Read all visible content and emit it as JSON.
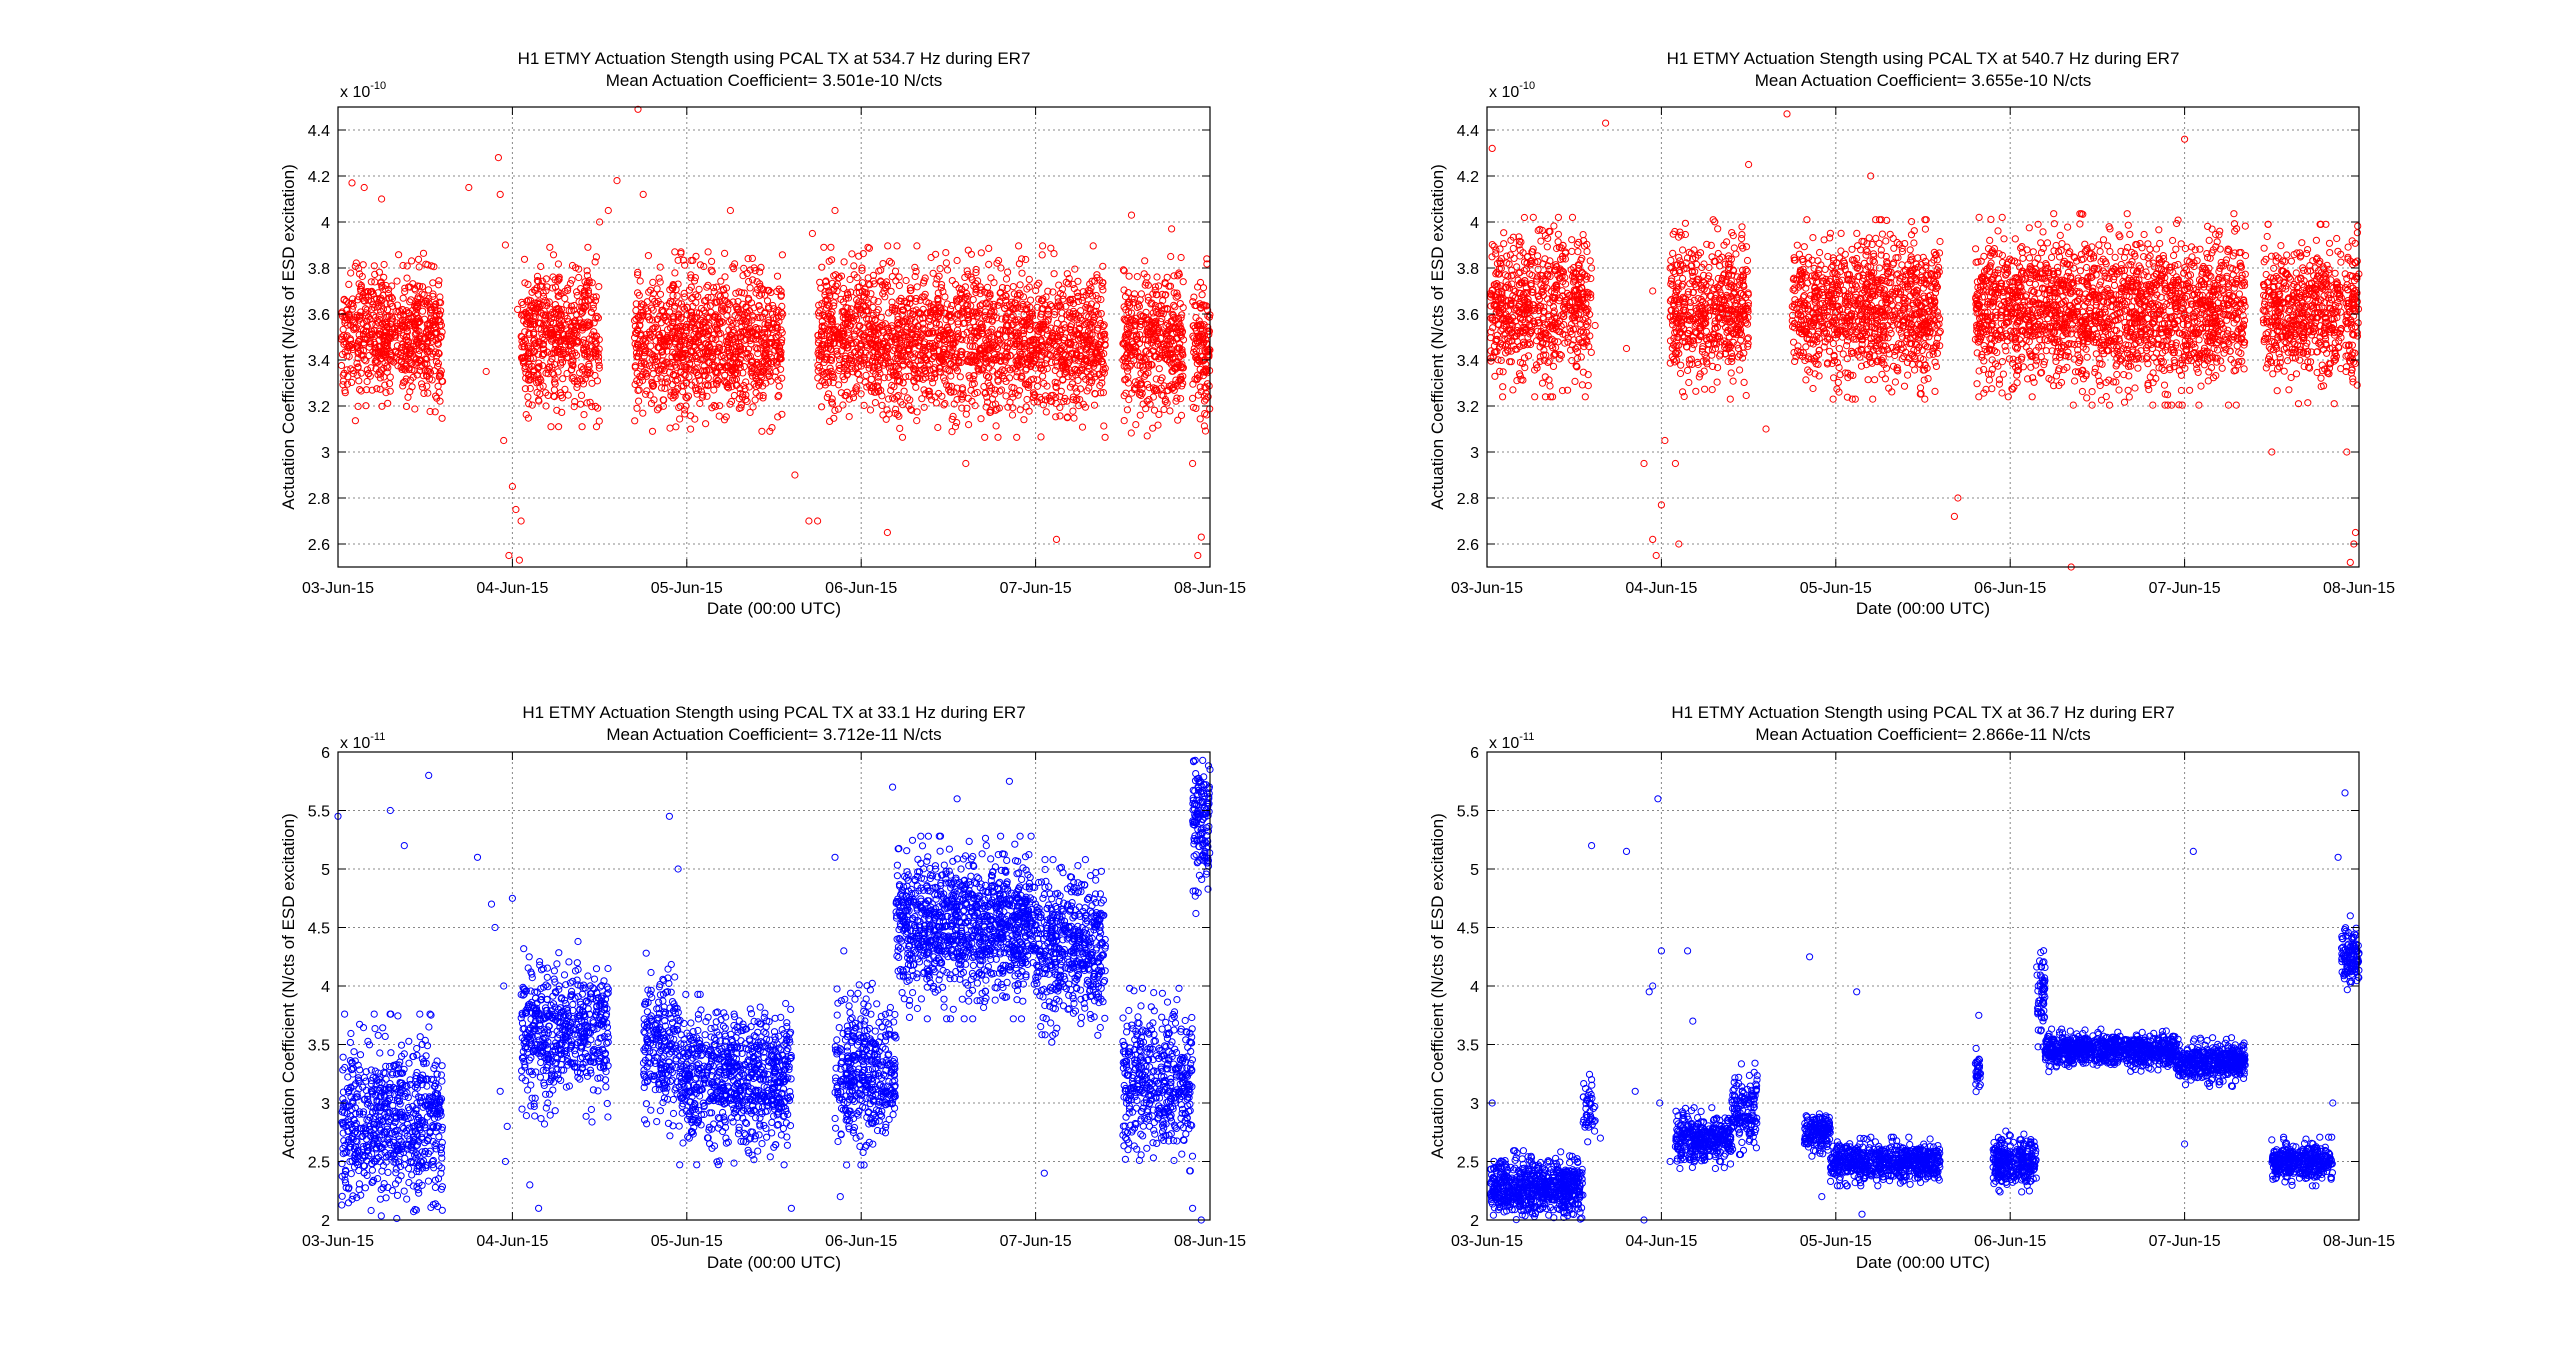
{
  "figure": {
    "background": "#ffffff",
    "panel_count": 4
  },
  "chart_data": [
    {
      "type": "scatter",
      "marker": "open-circle",
      "color": "#ff0000",
      "title_line1": "H1 ETMY Actuation Stength using PCAL TX at 534.7 Hz  during ER7",
      "title_line2": "Mean Actuation Coefficient= 3.501e-10 N/cts",
      "xlabel": "Date (00:00 UTC)",
      "ylabel": "Actuation Coefficient (N/cts of ESD excitation)",
      "y_exponent_base": "x 10",
      "y_exponent": "-10",
      "x_ticks": [
        "03-Jun-15",
        "04-Jun-15",
        "05-Jun-15",
        "06-Jun-15",
        "07-Jun-15",
        "08-Jun-15"
      ],
      "xlim": [
        0,
        5
      ],
      "ylim": [
        2.5,
        4.5
      ],
      "y_ticks": [
        2.6,
        2.8,
        3,
        3.2,
        3.4,
        3.6,
        3.8,
        4,
        4.2,
        4.4
      ],
      "y_tick_labels": [
        "2.6",
        "2.8",
        "3",
        "3.2",
        "3.4",
        "3.6",
        "3.8",
        "4",
        "4.2",
        "4.4"
      ],
      "grid": true,
      "x_unit": "days since 03-Jun-15 00:00 UTC",
      "segments": [
        {
          "x0": 0.02,
          "x1": 0.6,
          "mean": 3.5,
          "spread": 0.14,
          "n": 650
        },
        {
          "x0": 1.05,
          "x1": 1.5,
          "mean": 3.5,
          "spread": 0.15,
          "n": 520
        },
        {
          "x0": 1.7,
          "x1": 2.55,
          "mean": 3.48,
          "spread": 0.15,
          "n": 1000
        },
        {
          "x0": 2.75,
          "x1": 3.1,
          "mean": 3.5,
          "spread": 0.15,
          "n": 430
        },
        {
          "x0": 3.1,
          "x1": 4.4,
          "mean": 3.48,
          "spread": 0.16,
          "n": 1500
        },
        {
          "x0": 4.5,
          "x1": 4.85,
          "mean": 3.46,
          "spread": 0.15,
          "n": 420
        },
        {
          "x0": 4.9,
          "x1": 5.0,
          "mean": 3.45,
          "spread": 0.15,
          "n": 130
        }
      ],
      "outliers": [
        [
          0.08,
          4.17
        ],
        [
          0.15,
          4.15
        ],
        [
          0.25,
          4.1
        ],
        [
          0.75,
          4.15
        ],
        [
          0.85,
          3.35
        ],
        [
          0.92,
          4.28
        ],
        [
          0.93,
          4.12
        ],
        [
          0.95,
          3.05
        ],
        [
          0.98,
          2.55
        ],
        [
          1.0,
          2.85
        ],
        [
          1.02,
          2.75
        ],
        [
          1.04,
          2.53
        ],
        [
          1.05,
          2.7
        ],
        [
          1.03,
          3.62
        ],
        [
          0.96,
          3.9
        ],
        [
          1.5,
          4.0
        ],
        [
          1.55,
          4.05
        ],
        [
          1.6,
          4.18
        ],
        [
          1.72,
          4.49
        ],
        [
          1.75,
          4.12
        ],
        [
          2.25,
          4.05
        ],
        [
          2.55,
          3.6
        ],
        [
          2.62,
          2.9
        ],
        [
          2.7,
          2.7
        ],
        [
          2.75,
          2.7
        ],
        [
          2.72,
          3.95
        ],
        [
          2.85,
          4.05
        ],
        [
          3.15,
          2.65
        ],
        [
          3.6,
          2.95
        ],
        [
          4.12,
          2.62
        ],
        [
          4.55,
          4.03
        ],
        [
          4.78,
          3.97
        ],
        [
          4.9,
          2.95
        ],
        [
          4.93,
          2.55
        ],
        [
          4.95,
          2.63
        ]
      ]
    },
    {
      "type": "scatter",
      "marker": "open-circle",
      "color": "#ff0000",
      "title_line1": "H1 ETMY Actuation Stength using PCAL TX at 540.7 Hz  during ER7",
      "title_line2": "Mean Actuation Coefficient= 3.655e-10 N/cts",
      "xlabel": "Date (00:00 UTC)",
      "ylabel": "Actuation Coefficient (N/cts of ESD excitation)",
      "y_exponent_base": "x 10",
      "y_exponent": "-10",
      "x_ticks": [
        "03-Jun-15",
        "04-Jun-15",
        "05-Jun-15",
        "06-Jun-15",
        "07-Jun-15",
        "08-Jun-15"
      ],
      "xlim": [
        0,
        5
      ],
      "ylim": [
        2.5,
        4.5
      ],
      "y_ticks": [
        2.6,
        2.8,
        3,
        3.2,
        3.4,
        3.6,
        3.8,
        4,
        4.2,
        4.4
      ],
      "y_tick_labels": [
        "2.6",
        "2.8",
        "3",
        "3.2",
        "3.4",
        "3.6",
        "3.8",
        "4",
        "4.2",
        "4.4"
      ],
      "grid": true,
      "x_unit": "days since 03-Jun-15 00:00 UTC",
      "segments": [
        {
          "x0": 0.02,
          "x1": 0.6,
          "mean": 3.63,
          "spread": 0.15,
          "n": 650
        },
        {
          "x0": 1.05,
          "x1": 1.5,
          "mean": 3.62,
          "spread": 0.15,
          "n": 520
        },
        {
          "x0": 1.75,
          "x1": 2.6,
          "mean": 3.62,
          "spread": 0.15,
          "n": 1000
        },
        {
          "x0": 2.8,
          "x1": 3.15,
          "mean": 3.63,
          "spread": 0.15,
          "n": 430
        },
        {
          "x0": 3.15,
          "x1": 4.35,
          "mean": 3.62,
          "spread": 0.16,
          "n": 1450
        },
        {
          "x0": 4.45,
          "x1": 4.9,
          "mean": 3.6,
          "spread": 0.15,
          "n": 520
        },
        {
          "x0": 4.92,
          "x1": 5.0,
          "mean": 3.6,
          "spread": 0.15,
          "n": 100
        }
      ],
      "outliers": [
        [
          0.03,
          4.32
        ],
        [
          0.6,
          3.8
        ],
        [
          0.62,
          3.55
        ],
        [
          0.68,
          4.43
        ],
        [
          0.8,
          3.45
        ],
        [
          0.9,
          2.95
        ],
        [
          0.95,
          2.62
        ],
        [
          0.97,
          2.55
        ],
        [
          1.0,
          2.77
        ],
        [
          1.02,
          3.05
        ],
        [
          1.05,
          3.8
        ],
        [
          1.08,
          2.95
        ],
        [
          1.1,
          2.6
        ],
        [
          0.95,
          3.7
        ],
        [
          1.5,
          4.25
        ],
        [
          1.6,
          3.1
        ],
        [
          1.72,
          4.47
        ],
        [
          2.2,
          4.2
        ],
        [
          2.25,
          3.8
        ],
        [
          2.68,
          2.72
        ],
        [
          2.7,
          2.8
        ],
        [
          3.35,
          2.5
        ],
        [
          4.0,
          4.36
        ],
        [
          4.5,
          3.0
        ],
        [
          4.95,
          2.52
        ],
        [
          4.97,
          2.6
        ],
        [
          4.98,
          2.65
        ],
        [
          4.93,
          3.0
        ]
      ]
    },
    {
      "type": "scatter",
      "marker": "open-circle",
      "color": "#0000ff",
      "title_line1": "H1 ETMY Actuation Stength using PCAL TX at 33.1 Hz  during ER7",
      "title_line2": "Mean Actuation Coefficient= 3.712e-11 N/cts",
      "xlabel": "Date (00:00 UTC)",
      "ylabel": "Actuation Coefficient (N/cts of ESD excitation)",
      "y_exponent_base": "x 10",
      "y_exponent": "-11",
      "x_ticks": [
        "03-Jun-15",
        "04-Jun-15",
        "05-Jun-15",
        "06-Jun-15",
        "07-Jun-15",
        "08-Jun-15"
      ],
      "xlim": [
        0,
        5
      ],
      "ylim": [
        2,
        6
      ],
      "y_ticks": [
        2,
        2.5,
        3,
        3.5,
        4,
        4.5,
        5,
        5.5,
        6
      ],
      "y_tick_labels": [
        "2",
        "2.5",
        "3",
        "3.5",
        "4",
        "4.5",
        "5",
        "5.5",
        "6"
      ],
      "grid": true,
      "x_unit": "days since 03-Jun-15 00:00 UTC",
      "segments": [
        {
          "x0": 0.02,
          "x1": 0.6,
          "mean": 2.85,
          "spread": 0.35,
          "n": 700
        },
        {
          "x0": 1.05,
          "x1": 1.55,
          "mean": 3.6,
          "spread": 0.3,
          "n": 550
        },
        {
          "x0": 1.75,
          "x1": 1.95,
          "mean": 3.5,
          "spread": 0.3,
          "n": 220
        },
        {
          "x0": 1.95,
          "x1": 2.6,
          "mean": 3.2,
          "spread": 0.28,
          "n": 800
        },
        {
          "x0": 2.85,
          "x1": 3.2,
          "mean": 3.25,
          "spread": 0.3,
          "n": 420
        },
        {
          "x0": 3.2,
          "x1": 4.0,
          "mean": 4.5,
          "spread": 0.3,
          "n": 1100
        },
        {
          "x0": 4.0,
          "x1": 4.4,
          "mean": 4.3,
          "spread": 0.3,
          "n": 500
        },
        {
          "x0": 4.5,
          "x1": 4.9,
          "mean": 3.2,
          "spread": 0.3,
          "n": 450
        },
        {
          "x0": 4.9,
          "x1": 5.0,
          "mean": 5.4,
          "spread": 0.3,
          "n": 150
        }
      ],
      "outliers": [
        [
          0.0,
          5.45
        ],
        [
          0.3,
          5.5
        ],
        [
          0.38,
          5.2
        ],
        [
          0.52,
          5.8
        ],
        [
          0.8,
          5.1
        ],
        [
          0.88,
          4.7
        ],
        [
          0.9,
          4.5
        ],
        [
          0.95,
          4.0
        ],
        [
          0.93,
          3.1
        ],
        [
          0.97,
          2.8
        ],
        [
          0.96,
          2.5
        ],
        [
          1.0,
          4.75
        ],
        [
          1.1,
          2.3
        ],
        [
          1.15,
          2.1
        ],
        [
          1.9,
          5.45
        ],
        [
          1.95,
          5.0
        ],
        [
          2.6,
          2.1
        ],
        [
          2.85,
          5.1
        ],
        [
          2.9,
          4.3
        ],
        [
          2.88,
          2.2
        ],
        [
          3.18,
          5.7
        ],
        [
          3.55,
          5.6
        ],
        [
          3.85,
          5.75
        ],
        [
          4.05,
          2.4
        ],
        [
          4.9,
          2.1
        ],
        [
          4.95,
          2.0
        ]
      ]
    },
    {
      "type": "scatter",
      "marker": "open-circle",
      "color": "#0000ff",
      "title_line1": "H1 ETMY Actuation Stength using PCAL TX at 36.7 Hz  during ER7",
      "title_line2": "Mean Actuation Coefficient= 2.866e-11 N/cts",
      "xlabel": "Date (00:00 UTC)",
      "ylabel": "Actuation Coefficient (N/cts of ESD excitation)",
      "y_exponent_base": "x 10",
      "y_exponent": "-11",
      "x_ticks": [
        "03-Jun-15",
        "04-Jun-15",
        "05-Jun-15",
        "06-Jun-15",
        "07-Jun-15",
        "08-Jun-15"
      ],
      "xlim": [
        0,
        5
      ],
      "ylim": [
        2,
        6
      ],
      "y_ticks": [
        2,
        2.5,
        3,
        3.5,
        4,
        4.5,
        5,
        5.5,
        6
      ],
      "y_tick_labels": [
        "2",
        "2.5",
        "3",
        "3.5",
        "4",
        "4.5",
        "5",
        "5.5",
        "6"
      ],
      "grid": true,
      "x_unit": "days since 03-Jun-15 00:00 UTC",
      "segments": [
        {
          "x0": 0.02,
          "x1": 0.55,
          "mean": 2.28,
          "spread": 0.12,
          "n": 700
        },
        {
          "x0": 0.55,
          "x1": 0.62,
          "mean": 2.95,
          "spread": 0.12,
          "n": 40
        },
        {
          "x0": 1.08,
          "x1": 1.4,
          "mean": 2.7,
          "spread": 0.1,
          "n": 350
        },
        {
          "x0": 1.4,
          "x1": 1.55,
          "mean": 2.95,
          "spread": 0.15,
          "n": 150
        },
        {
          "x0": 1.82,
          "x1": 1.97,
          "mean": 2.75,
          "spread": 0.08,
          "n": 160
        },
        {
          "x0": 1.97,
          "x1": 2.6,
          "mean": 2.5,
          "spread": 0.08,
          "n": 650
        },
        {
          "x0": 2.8,
          "x1": 2.83,
          "mean": 3.28,
          "spread": 0.08,
          "n": 30
        },
        {
          "x0": 2.9,
          "x1": 3.15,
          "mean": 2.5,
          "spread": 0.1,
          "n": 300
        },
        {
          "x0": 3.15,
          "x1": 3.2,
          "mean": 4.0,
          "spread": 0.2,
          "n": 60
        },
        {
          "x0": 3.2,
          "x1": 3.95,
          "mean": 3.45,
          "spread": 0.07,
          "n": 800
        },
        {
          "x0": 3.95,
          "x1": 4.35,
          "mean": 3.35,
          "spread": 0.08,
          "n": 450
        },
        {
          "x0": 4.5,
          "x1": 4.85,
          "mean": 2.5,
          "spread": 0.08,
          "n": 380
        },
        {
          "x0": 4.9,
          "x1": 5.0,
          "mean": 4.25,
          "spread": 0.12,
          "n": 120
        }
      ],
      "outliers": [
        [
          0.03,
          3.0
        ],
        [
          0.6,
          5.2
        ],
        [
          0.6,
          3.2
        ],
        [
          0.65,
          2.7
        ],
        [
          0.8,
          5.15
        ],
        [
          0.85,
          3.1
        ],
        [
          0.9,
          2.0
        ],
        [
          0.93,
          3.95
        ],
        [
          0.95,
          4.0
        ],
        [
          0.98,
          5.6
        ],
        [
          1.0,
          4.3
        ],
        [
          0.99,
          3.0
        ],
        [
          1.05,
          2.5
        ],
        [
          1.15,
          4.3
        ],
        [
          1.18,
          3.7
        ],
        [
          1.85,
          4.25
        ],
        [
          1.92,
          2.2
        ],
        [
          2.12,
          3.95
        ],
        [
          2.15,
          2.05
        ],
        [
          2.82,
          3.75
        ],
        [
          4.05,
          5.15
        ],
        [
          4.0,
          2.65
        ],
        [
          4.88,
          5.1
        ],
        [
          4.92,
          5.65
        ],
        [
          4.95,
          4.6
        ],
        [
          4.85,
          3.0
        ]
      ]
    }
  ]
}
